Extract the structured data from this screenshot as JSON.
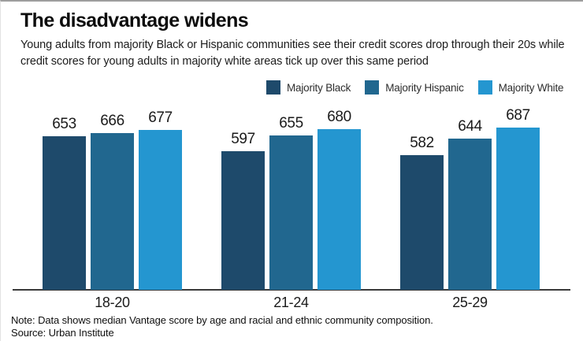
{
  "header": {
    "title": "The disadvantage widens",
    "subtitle": "Young adults from majority Black or Hispanic communities see their credit scores drop through their 20s while credit scores for young adults in majority white areas tick up over this same period"
  },
  "chart_data": {
    "type": "bar",
    "title": "The disadvantage widens",
    "categories": [
      "18-20",
      "21-24",
      "25-29"
    ],
    "series": [
      {
        "name": "Majority Black",
        "color": "#1e4a6b",
        "values": [
          653,
          597,
          582
        ]
      },
      {
        "name": "Majority Hispanic",
        "color": "#21678f",
        "values": [
          666,
          655,
          644
        ]
      },
      {
        "name": "Majority White",
        "color": "#2496d0",
        "values": [
          677,
          680,
          687
        ]
      }
    ],
    "value_labels": "above-bars",
    "legend_position": "top",
    "xlabel": "",
    "ylabel": "",
    "y_axis_visible": false,
    "grid": false,
    "baseline_truncated": true,
    "approx_value_range_shown": [
      582,
      687
    ]
  },
  "footer": {
    "note": "Note: Data shows median Vantage score by age and racial and ethnic community composition.",
    "source": "Source: Urban Institute"
  }
}
